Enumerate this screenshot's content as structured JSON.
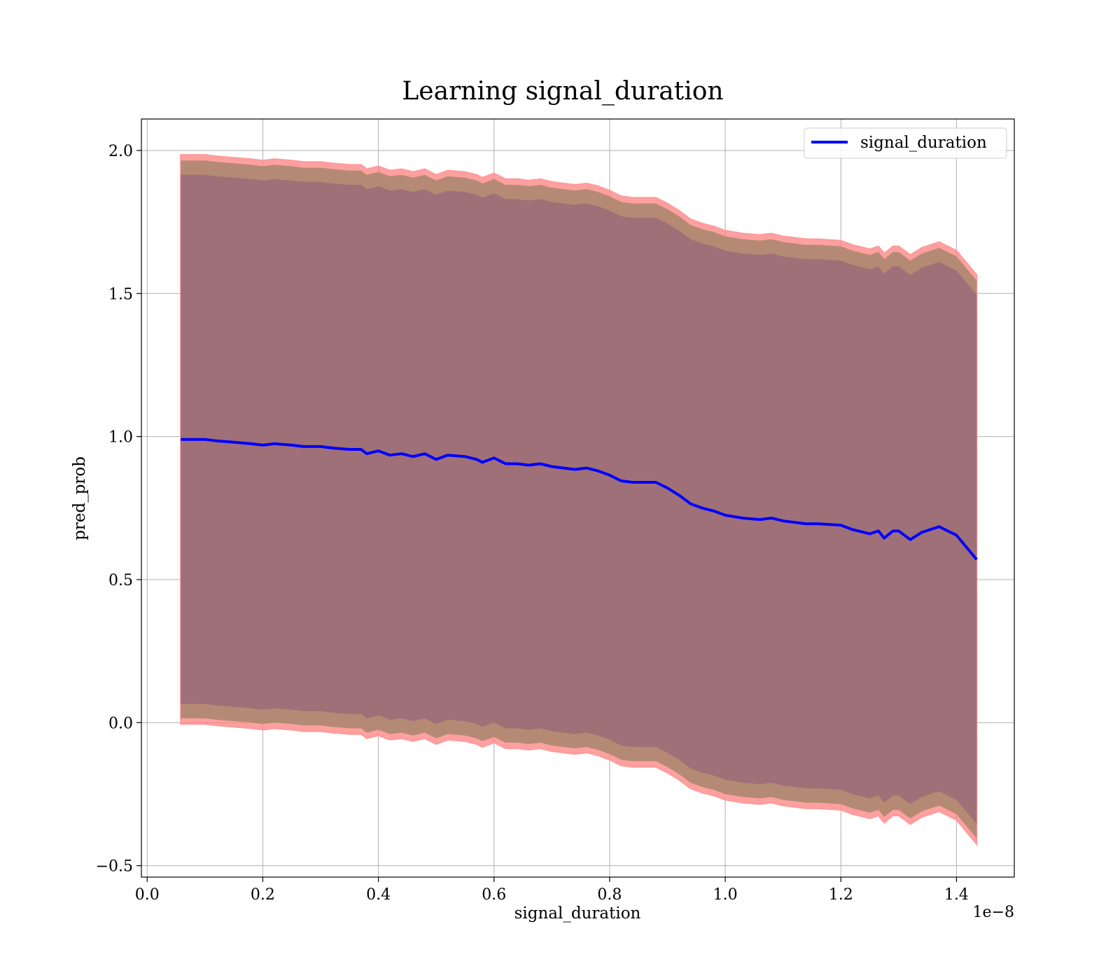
{
  "chart_data": {
    "type": "line",
    "title": "Learning signal_duration",
    "xlabel": "signal_duration",
    "ylabel": "pred_prob",
    "x_offset_text": "1e−8",
    "xlim": [
      -0.01,
      1.5
    ],
    "ylim": [
      -0.54,
      2.11
    ],
    "grid": true,
    "legend_position": "top-right",
    "x_tick_labels": [
      "0.0",
      "0.2",
      "0.4",
      "0.6",
      "0.8",
      "1.0",
      "1.2",
      "1.4"
    ],
    "x_ticks": [
      0.0,
      0.2,
      0.4,
      0.6,
      0.8,
      1.0,
      1.2,
      1.4
    ],
    "y_tick_labels": [
      "−0.5",
      "0.0",
      "0.5",
      "1.0",
      "1.5",
      "2.0"
    ],
    "y_ticks": [
      -0.5,
      0.0,
      0.5,
      1.0,
      1.5,
      2.0
    ],
    "series": [
      {
        "name": "signal_duration",
        "color": "#0000ff",
        "x": [
          0.058,
          0.08,
          0.1,
          0.12,
          0.15,
          0.18,
          0.2,
          0.22,
          0.25,
          0.27,
          0.3,
          0.32,
          0.35,
          0.37,
          0.38,
          0.4,
          0.42,
          0.44,
          0.46,
          0.48,
          0.5,
          0.52,
          0.55,
          0.57,
          0.58,
          0.6,
          0.62,
          0.64,
          0.66,
          0.68,
          0.7,
          0.72,
          0.74,
          0.76,
          0.78,
          0.8,
          0.82,
          0.84,
          0.86,
          0.88,
          0.9,
          0.92,
          0.94,
          0.96,
          0.98,
          1.0,
          1.03,
          1.06,
          1.08,
          1.1,
          1.12,
          1.14,
          1.16,
          1.2,
          1.22,
          1.25,
          1.265,
          1.275,
          1.29,
          1.3,
          1.32,
          1.34,
          1.37,
          1.4,
          1.435
        ],
        "y": [
          0.99,
          0.99,
          0.99,
          0.985,
          0.98,
          0.975,
          0.97,
          0.975,
          0.97,
          0.965,
          0.965,
          0.96,
          0.955,
          0.955,
          0.94,
          0.95,
          0.935,
          0.94,
          0.93,
          0.94,
          0.92,
          0.935,
          0.93,
          0.92,
          0.91,
          0.925,
          0.905,
          0.905,
          0.9,
          0.905,
          0.895,
          0.89,
          0.885,
          0.89,
          0.88,
          0.865,
          0.845,
          0.84,
          0.84,
          0.84,
          0.82,
          0.795,
          0.765,
          0.75,
          0.74,
          0.725,
          0.715,
          0.71,
          0.715,
          0.705,
          0.7,
          0.695,
          0.695,
          0.69,
          0.675,
          0.66,
          0.67,
          0.645,
          0.67,
          0.67,
          0.64,
          0.665,
          0.685,
          0.655,
          0.57
        ]
      }
    ],
    "bands": [
      {
        "name": "outer band",
        "color": "#ff8080",
        "half_width": 0.995
      },
      {
        "name": "middle band",
        "color": "#b58a74",
        "half_width": 0.975
      },
      {
        "name": "inner band",
        "color": "#a07078",
        "half_width": 0.925
      }
    ]
  }
}
